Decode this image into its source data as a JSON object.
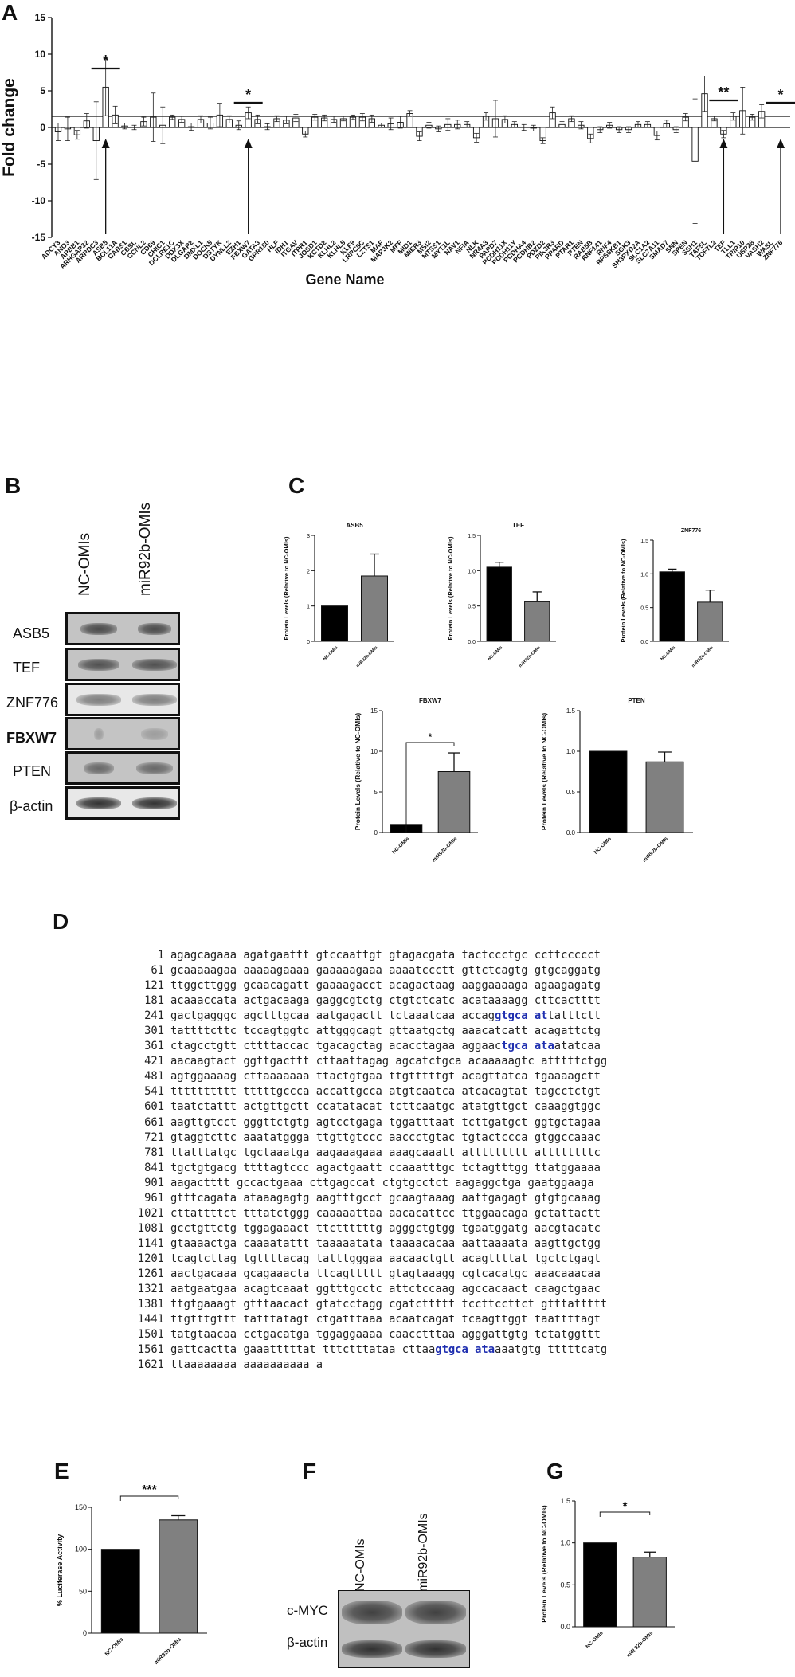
{
  "panels": {
    "a": "A",
    "b": "B",
    "c": "C",
    "d": "D",
    "e": "E",
    "f": "F",
    "g": "G"
  },
  "chart_data": [
    {
      "panel": "A",
      "type": "bar",
      "ylabel": "Fold change",
      "xlabel": "Gene Name",
      "ylim": [
        -15,
        15
      ],
      "yticks": [
        "15",
        "10",
        "5",
        "0",
        "-5",
        "-10",
        "-15"
      ],
      "reference_line": 1.5,
      "categories": [
        "ADCY3",
        "ANO3",
        "APBB1",
        "ARHGAP32",
        "ARRDC3",
        "ASB5",
        "BCL11A",
        "CABS1",
        "CBSL",
        "CCNL2",
        "CD69",
        "CHIC1",
        "DCLRE1C",
        "DDX3X",
        "DLGAP2",
        "DMXL1",
        "DOCK5",
        "DSTYK",
        "DYNLL2",
        "EZH1",
        "FBXW7",
        "GATA3",
        "GPR180",
        "HLF",
        "IDH1",
        "ITGAV",
        "ITPR1",
        "JOSD1",
        "KCTD2",
        "KLHL2",
        "KLHL5",
        "KLF9",
        "LRRC8C",
        "LZTS1",
        "MAF",
        "MAP3K2",
        "MFF",
        "MID1",
        "MIER3",
        "MSI2",
        "MTSS1",
        "MYT1L",
        "NAV1",
        "NFIA",
        "NLK",
        "NR4A3",
        "PAPD7",
        "PCDH11X",
        "PCDH11Y",
        "PCDHA4",
        "PCDHB2",
        "PDZD2",
        "PIK3R3",
        "PPARD",
        "PTAR1",
        "PTEN",
        "RAB5B",
        "RNF141",
        "RNF4",
        "RPS6KB1",
        "SGK3",
        "SH3PXD2A",
        "SLC1A2",
        "SLC7A11",
        "SMAD7",
        "SNN",
        "SPEN",
        "SSH1",
        "TAF5L",
        "TCF7L2",
        "TEF",
        "TLL1",
        "TRIP10",
        "USP28",
        "VASH2",
        "WASL",
        "ZNF776"
      ],
      "values": [
        -0.6,
        -0.2,
        -1.0,
        0.9,
        -1.8,
        5.5,
        1.7,
        0.2,
        0.0,
        0.8,
        1.4,
        0.3,
        1.4,
        1.1,
        0.1,
        1.1,
        0.6,
        1.7,
        1.1,
        0.3,
        2.0,
        1.1,
        0.1,
        1.2,
        1.0,
        1.3,
        -0.9,
        1.4,
        1.3,
        1.1,
        1.2,
        1.4,
        1.4,
        1.2,
        0.3,
        0.5,
        0.7,
        1.9,
        -1.2,
        0.3,
        -0.2,
        0.4,
        0.4,
        0.4,
        -1.4,
        1.5,
        1.2,
        1.1,
        0.4,
        0.0,
        -0.1,
        -1.8,
        2.0,
        0.4,
        1.2,
        0.3,
        -1.5,
        -0.3,
        0.3,
        -0.3,
        -0.3,
        0.4,
        0.4,
        -1.1,
        0.5,
        -0.3,
        1.4,
        -4.6,
        4.6,
        1.2,
        -0.9,
        1.5,
        2.3,
        1.4,
        2.2,
        0.0,
        0.0
      ],
      "errors": [
        1.2,
        1.6,
        0.6,
        1.0,
        5.3,
        3.9,
        1.2,
        0.4,
        0.3,
        0.6,
        3.3,
        2.5,
        0.3,
        0.4,
        0.5,
        0.5,
        0.8,
        1.6,
        0.5,
        0.6,
        0.8,
        0.6,
        0.4,
        0.4,
        0.5,
        0.5,
        0.4,
        0.4,
        0.4,
        0.4,
        0.3,
        0.3,
        0.5,
        0.5,
        0.3,
        0.8,
        0.8,
        0.4,
        0.6,
        0.4,
        0.4,
        0.8,
        0.6,
        0.4,
        0.6,
        0.5,
        2.5,
        0.5,
        0.4,
        0.4,
        0.4,
        0.4,
        0.8,
        0.4,
        0.4,
        0.5,
        0.6,
        0.4,
        0.4,
        0.4,
        0.4,
        0.4,
        0.4,
        0.6,
        0.5,
        0.4,
        0.5,
        8.5,
        2.4,
        0.3,
        0.5,
        0.5,
        3.2,
        0.4,
        0.9,
        0.0,
        0.0
      ],
      "significance": [
        {
          "label": "*",
          "gene": "ASB5"
        },
        {
          "label": "*",
          "gene": "FBXW7"
        },
        {
          "label": "**",
          "gene": "TEF"
        },
        {
          "label": "*",
          "gene": "ZNF776"
        }
      ]
    },
    {
      "panel": "C1",
      "type": "bar",
      "title": "ASB5",
      "ylabel": "Protein Levels (Relative to NC-OMIs)",
      "categories": [
        "NC-OMIs",
        "miR92b-OMIs"
      ],
      "values": [
        1.0,
        1.85
      ],
      "errors": [
        0.0,
        0.62
      ],
      "colors": [
        "#000000",
        "#808080"
      ],
      "ylim": [
        0,
        3
      ],
      "yticks": [
        "0",
        "1",
        "2",
        "3"
      ]
    },
    {
      "panel": "C2",
      "type": "bar",
      "title": "TEF",
      "ylabel": "Protein Levels (Relative to NC-OMIs)",
      "categories": [
        "NC-OMIs",
        "miR92b-OMIs"
      ],
      "values": [
        1.05,
        0.56
      ],
      "errors": [
        0.07,
        0.14
      ],
      "colors": [
        "#000000",
        "#808080"
      ],
      "ylim": [
        0,
        1.5
      ],
      "yticks": [
        "0.0",
        "0.5",
        "1.0",
        "1.5"
      ]
    },
    {
      "panel": "C3",
      "type": "bar",
      "title": "ZNF776",
      "ylabel": "Protein Levels (Relative to NC-OMIs)",
      "categories": [
        "NC-OMIs",
        "miR92b-OMIs"
      ],
      "values": [
        1.03,
        0.58
      ],
      "errors": [
        0.04,
        0.18
      ],
      "colors": [
        "#000000",
        "#808080"
      ],
      "ylim": [
        0,
        1.5
      ],
      "yticks": [
        "0.0",
        "0.5",
        "1.0",
        "1.5"
      ]
    },
    {
      "panel": "C4",
      "type": "bar",
      "title": "FBXW7",
      "ylabel": "Protein Levels (Relative to NC-OMIs)",
      "categories": [
        "NC-OMIs",
        "miR92b-OMIs"
      ],
      "values": [
        1.0,
        7.5
      ],
      "errors": [
        0.0,
        2.3
      ],
      "colors": [
        "#000000",
        "#808080"
      ],
      "ylim": [
        0,
        15
      ],
      "yticks": [
        "0",
        "5",
        "10",
        "15"
      ],
      "significance": "*"
    },
    {
      "panel": "C5",
      "type": "bar",
      "title": "PTEN",
      "ylabel": "Protein Levels (Relative to NC-OMIs)",
      "categories": [
        "NC-OMIs",
        "miR92b-OMIs"
      ],
      "values": [
        1.0,
        0.87
      ],
      "errors": [
        0.0,
        0.12
      ],
      "colors": [
        "#000000",
        "#808080"
      ],
      "ylim": [
        0,
        1.5
      ],
      "yticks": [
        "0.0",
        "0.5",
        "1.0",
        "1.5"
      ]
    },
    {
      "panel": "E",
      "type": "bar",
      "ylabel": "% Luciferase Activity",
      "categories": [
        "NC-OMIs",
        "miR92b-OMIs"
      ],
      "values": [
        100,
        135
      ],
      "errors": [
        0,
        5
      ],
      "colors": [
        "#000000",
        "#808080"
      ],
      "ylim": [
        0,
        150
      ],
      "yticks": [
        "0",
        "50",
        "100",
        "150"
      ],
      "significance": "***"
    },
    {
      "panel": "G",
      "type": "bar",
      "ylabel": "Protein Levels (Relative to NC-OMIs)",
      "categories": [
        "NC-OMIs",
        "miR 92b-OMIs"
      ],
      "values": [
        1.0,
        0.83
      ],
      "errors": [
        0.0,
        0.06
      ],
      "colors": [
        "#000000",
        "#808080"
      ],
      "ylim": [
        0,
        1.5
      ],
      "yticks": [
        "0.0",
        "0.5",
        "1.0",
        "1.5"
      ],
      "significance": "*"
    }
  ],
  "blot_b": {
    "columns": [
      "NC-OMIs",
      "miR92b-OMIs"
    ],
    "rows": [
      "ASB5",
      "TEF",
      "ZNF776",
      "FBXW7",
      "PTEN",
      "β-actin"
    ]
  },
  "blot_f": {
    "columns": [
      "NC-OMIs",
      "miR92b-OMIs"
    ],
    "rows": [
      "c-MYC",
      "β-actin"
    ]
  },
  "sequence": [
    {
      "n": "1",
      "parts": [
        {
          "t": "agagcagaaa agatgaattt gtccaattgt gtagacgata tactccctgc ccttccccct"
        }
      ]
    },
    {
      "n": "61",
      "parts": [
        {
          "t": "gcaaaaagaa aaaaagaaaa gaaaaagaaa aaaatccctt gttctcagtg gtgcaggatg"
        }
      ]
    },
    {
      "n": "121",
      "parts": [
        {
          "t": "ttggcttggg gcaacagatt gaaaagacct acagactaag aaggaaaaga agaagagatg"
        }
      ]
    },
    {
      "n": "181",
      "parts": [
        {
          "t": "acaaaccata actgacaaga gaggcgtctg ctgtctcatc acataaaagg cttcactttt"
        }
      ]
    },
    {
      "n": "241",
      "parts": [
        {
          "t": "gactgagggc agctttgcaa aatgagactt tctaaatcaa accag"
        },
        {
          "t": "gtgca at",
          "hl": true
        },
        {
          "t": "tatttctt"
        }
      ]
    },
    {
      "n": "301",
      "parts": [
        {
          "t": "tattttcttc tccagtggtc attgggcagt gttaatgctg aaacatcatt acagattctg"
        }
      ]
    },
    {
      "n": "361",
      "parts": [
        {
          "t": "ctagcctgtt cttttaccac tgacagctag acacctagaa aggaac"
        },
        {
          "t": "tgca ata",
          "hl": true
        },
        {
          "t": "atatcaa"
        }
      ]
    },
    {
      "n": "421",
      "parts": [
        {
          "t": "aacaagtact ggttgacttt cttaattagag agcatctgca acaaaaagtc atttttctgg"
        }
      ]
    },
    {
      "n": "481",
      "parts": [
        {
          "t": "agtggaaaag cttaaaaaaa ttactgtgaa ttgtttttgt acagttatca tgaaaagctt"
        }
      ]
    },
    {
      "n": "541",
      "parts": [
        {
          "t": "tttttttttt tttttgccca accattgcca atgtcaatca atcacagtat tagcctctgt"
        }
      ]
    },
    {
      "n": "601",
      "parts": [
        {
          "t": "taatctattt actgttgctt ccatatacat tcttcaatgc atatgttgct caaaggtggc"
        }
      ]
    },
    {
      "n": "661",
      "parts": [
        {
          "t": "aagttgtcct gggttctgtg agtcctgaga tggatttaat tcttgatgct ggtgctagaa"
        }
      ]
    },
    {
      "n": "721",
      "parts": [
        {
          "t": "gtaggtcttc aaatatggga ttgttgtccc aaccctgtac tgtactccca gtggccaaac"
        }
      ]
    },
    {
      "n": "781",
      "parts": [
        {
          "t": "ttatttatgc tgctaaatga aagaaagaaa aaagcaaatt attttttttt attttttttc"
        }
      ]
    },
    {
      "n": "841",
      "parts": [
        {
          "t": "tgctgtgacg ttttagtccc agactgaatt ccaaatttgc tctagtttgg ttatggaaaa"
        }
      ]
    },
    {
      "n": "901",
      "parts": [
        {
          "t": "aagactttt gccactgaaa cttgagccat ctgtgcctct aagaggctga gaatggaaga"
        }
      ]
    },
    {
      "n": "961",
      "parts": [
        {
          "t": "gtttcagata ataaagagtg aagtttgcct gcaagtaaag aattgagagt gtgtgcaaag"
        }
      ]
    },
    {
      "n": "1021",
      "parts": [
        {
          "t": "cttattttct tttatctggg caaaaattaa aacacattcc ttggaacaga gctattactt"
        }
      ]
    },
    {
      "n": "1081",
      "parts": [
        {
          "t": "gcctgttctg tggagaaact ttcttttttg agggctgtgg tgaatggatg aacgtacatc"
        }
      ]
    },
    {
      "n": "1141",
      "parts": [
        {
          "t": "gtaaaactga caaaatattt taaaaatata taaaacacaa aattaaaata aagttgctgg"
        }
      ]
    },
    {
      "n": "1201",
      "parts": [
        {
          "t": "tcagtcttag tgttttacag tatttgggaa aacaactgtt acagttttat tgctctgagt"
        }
      ]
    },
    {
      "n": "1261",
      "parts": [
        {
          "t": "aactgacaaa gcagaaacta ttcagttttt gtagtaaagg cgtcacatgc aaacaaacaa"
        }
      ]
    },
    {
      "n": "1321",
      "parts": [
        {
          "t": "aatgaatgaa acagtcaaat ggtttgcctc attctccaag agccacaact caagctgaac"
        }
      ]
    },
    {
      "n": "1381",
      "parts": [
        {
          "t": "ttgtgaaagt gtttaacact gtatcctagg cgatcttttt tccttccttct gtttattttt"
        }
      ]
    },
    {
      "n": "1441",
      "parts": [
        {
          "t": "ttgtttgttt tatttatagt ctgatttaaa acaatcagat tcaagttggt taattttagt"
        }
      ]
    },
    {
      "n": "1501",
      "parts": [
        {
          "t": "tatgtaacaa cctgacatga tggaggaaaa caacctttaa agggattgtg tctatggttt"
        }
      ]
    },
    {
      "n": "1561",
      "parts": [
        {
          "t": "gattcactta gaaatttttat tttctttataa cttaa"
        },
        {
          "t": "gtgca ata",
          "hl": true
        },
        {
          "t": "aaatgtg tttttcatg"
        }
      ]
    },
    {
      "n": "1621",
      "parts": [
        {
          "t": "ttaaaaaaaa aaaaaaaaaa a"
        }
      ]
    }
  ]
}
